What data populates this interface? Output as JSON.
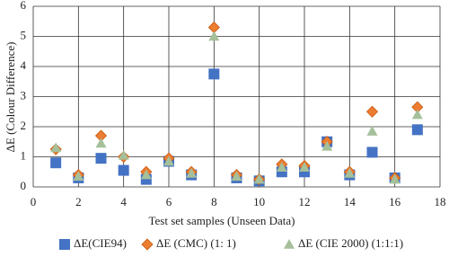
{
  "chart_data": {
    "type": "scatter",
    "xlabel": "Test set samples (Unseen Data)",
    "ylabel": "ΔE (Colour Difference)",
    "x": [
      1,
      2,
      3,
      4,
      5,
      6,
      7,
      8,
      9,
      10,
      11,
      12,
      13,
      14,
      15,
      16,
      17
    ],
    "series": [
      {
        "name": "ΔE(CIE94)",
        "color": "#4472c4",
        "marker": "square",
        "values": [
          0.8,
          0.3,
          0.95,
          0.55,
          0.25,
          0.85,
          0.4,
          3.75,
          0.3,
          0.2,
          0.5,
          0.5,
          1.5,
          0.4,
          1.15,
          0.3,
          1.9
        ]
      },
      {
        "name": "ΔE (CMC) (1: 1)",
        "color": "#ed7d31",
        "marker": "diamond",
        "values": [
          1.25,
          0.4,
          1.7,
          1.0,
          0.5,
          0.95,
          0.5,
          5.3,
          0.4,
          0.25,
          0.75,
          0.7,
          1.5,
          0.5,
          2.5,
          0.3,
          2.65
        ]
      },
      {
        "name": "ΔE (CIE 2000) (1:1:1)",
        "color": "#a5c09a",
        "marker": "triangle",
        "values": [
          1.3,
          0.35,
          1.45,
          1.05,
          0.4,
          0.85,
          0.45,
          5.0,
          0.35,
          0.25,
          0.65,
          0.65,
          1.35,
          0.45,
          1.85,
          0.25,
          2.4
        ]
      }
    ],
    "xlim": [
      0,
      18
    ],
    "xticks": [
      0,
      2,
      4,
      6,
      8,
      10,
      12,
      14,
      16,
      18
    ],
    "ylim": [
      0,
      6
    ],
    "yticks": [
      0,
      1,
      2,
      3,
      4,
      5,
      6
    ],
    "grid": true,
    "legend": "bottom"
  }
}
